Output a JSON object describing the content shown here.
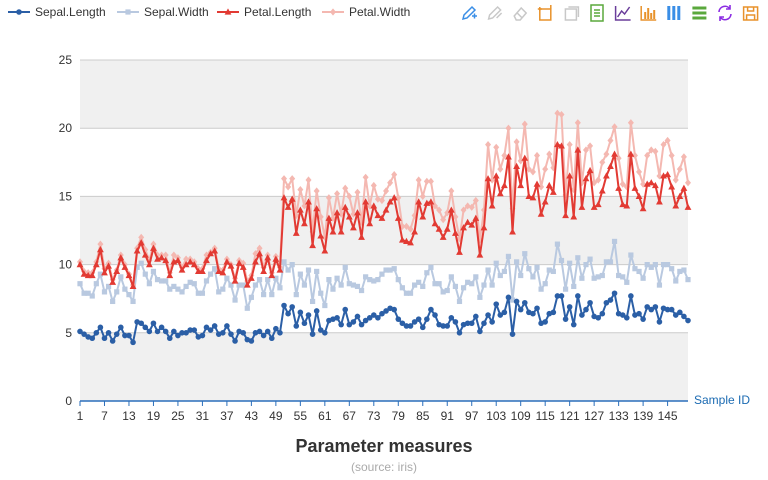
{
  "chart_data": {
    "type": "line",
    "title": "Parameter measures",
    "subtitle": "(source: iris)",
    "xlabel": "Sample ID",
    "ylabel": "",
    "xlim": [
      1,
      150
    ],
    "ylim": [
      0,
      25
    ],
    "x_ticks": [
      1,
      7,
      13,
      19,
      25,
      31,
      37,
      43,
      49,
      55,
      61,
      67,
      73,
      79,
      85,
      91,
      97,
      103,
      109,
      115,
      121,
      127,
      133,
      139,
      145
    ],
    "y_ticks": [
      0,
      5,
      10,
      15,
      20,
      25
    ],
    "grid": "alternating horizontal bands",
    "legend_position": "top-left",
    "series": [
      {
        "name": "Sepal.Length",
        "color": "#2b5fa6",
        "marker": "circle",
        "values": [
          5.1,
          4.9,
          4.7,
          4.6,
          5.0,
          5.4,
          4.6,
          5.0,
          4.4,
          4.9,
          5.4,
          4.8,
          4.8,
          4.3,
          5.8,
          5.7,
          5.4,
          5.1,
          5.7,
          5.1,
          5.4,
          5.1,
          4.6,
          5.1,
          4.8,
          5.0,
          5.0,
          5.2,
          5.2,
          4.7,
          4.8,
          5.4,
          5.2,
          5.5,
          4.9,
          5.0,
          5.5,
          4.9,
          4.4,
          5.1,
          5.0,
          4.5,
          4.4,
          5.0,
          5.1,
          4.8,
          5.1,
          4.6,
          5.3,
          5.0,
          7.0,
          6.4,
          6.9,
          5.5,
          6.5,
          5.7,
          6.3,
          4.9,
          6.6,
          5.2,
          5.0,
          5.9,
          6.0,
          6.1,
          5.6,
          6.7,
          5.6,
          5.8,
          6.2,
          5.6,
          5.9,
          6.1,
          6.3,
          6.1,
          6.4,
          6.6,
          6.8,
          6.7,
          6.0,
          5.7,
          5.5,
          5.5,
          5.8,
          6.0,
          5.4,
          6.0,
          6.7,
          6.3,
          5.6,
          5.5,
          5.5,
          6.1,
          5.8,
          5.0,
          5.6,
          5.7,
          5.7,
          6.2,
          5.1,
          5.7,
          6.3,
          5.8,
          7.1,
          6.3,
          6.5,
          7.6,
          4.9,
          7.3,
          6.7,
          7.2,
          6.5,
          6.4,
          6.8,
          5.7,
          5.8,
          6.4,
          6.5,
          7.7,
          7.7,
          6.0,
          6.9,
          5.6,
          7.7,
          6.3,
          6.7,
          7.2,
          6.2,
          6.1,
          6.4,
          7.2,
          7.4,
          7.9,
          6.4,
          6.3,
          6.1,
          7.7,
          6.3,
          6.4,
          6.0,
          6.9,
          6.7,
          6.9,
          5.8,
          6.8,
          6.7,
          6.7,
          6.3,
          6.5,
          6.2,
          5.9
        ]
      },
      {
        "name": "Sepal.Width",
        "color": "#b9c9e0",
        "marker": "square",
        "values": [
          8.6,
          7.9,
          7.9,
          7.7,
          8.6,
          9.3,
          8.0,
          8.4,
          7.3,
          8.0,
          9.1,
          8.2,
          7.8,
          7.3,
          9.8,
          10.1,
          9.3,
          8.6,
          9.5,
          8.9,
          8.8,
          8.8,
          8.2,
          8.4,
          8.2,
          8.0,
          8.4,
          8.7,
          8.6,
          7.9,
          7.9,
          8.8,
          9.3,
          9.7,
          8.0,
          8.2,
          9.0,
          8.5,
          7.4,
          8.5,
          8.5,
          6.8,
          7.6,
          8.5,
          8.9,
          7.8,
          8.9,
          7.8,
          9.0,
          8.3,
          10.2,
          9.6,
          10.0,
          7.8,
          9.3,
          8.5,
          9.6,
          7.3,
          9.5,
          7.9,
          7.0,
          8.9,
          8.2,
          9.0,
          8.5,
          9.8,
          8.6,
          8.5,
          8.4,
          8.1,
          9.1,
          8.9,
          8.8,
          8.9,
          9.3,
          9.6,
          9.6,
          9.7,
          8.9,
          8.3,
          7.9,
          7.9,
          8.5,
          8.7,
          8.4,
          9.4,
          9.8,
          8.6,
          8.6,
          8.0,
          8.1,
          9.1,
          8.4,
          7.3,
          8.3,
          8.7,
          8.6,
          9.1,
          7.6,
          8.5,
          9.6,
          8.5,
          10.1,
          9.2,
          9.5,
          10.6,
          7.4,
          10.2,
          9.2,
          10.8,
          9.7,
          9.1,
          9.8,
          8.2,
          8.6,
          9.6,
          9.5,
          11.5,
          10.3,
          8.2,
          10.1,
          8.4,
          10.5,
          9.0,
          10.0,
          10.4,
          9.0,
          9.1,
          9.2,
          10.2,
          10.2,
          11.7,
          9.2,
          9.1,
          8.7,
          10.7,
          9.7,
          9.5,
          9.0,
          10.0,
          9.8,
          10.0,
          8.5,
          10.0,
          10.0,
          9.7,
          8.8,
          9.5,
          9.6,
          8.9
        ]
      },
      {
        "name": "Petal.Length",
        "color": "#e23a33",
        "marker": "triangle",
        "values": [
          10.0,
          9.3,
          9.2,
          9.2,
          10.0,
          11.1,
          9.4,
          9.9,
          8.7,
          9.5,
          10.5,
          9.8,
          9.2,
          8.4,
          11.0,
          11.6,
          10.7,
          10.0,
          11.2,
          10.4,
          10.5,
          10.3,
          9.2,
          10.2,
          10.3,
          9.6,
          10.0,
          10.2,
          10.0,
          9.5,
          9.5,
          10.3,
          10.8,
          11.0,
          9.5,
          9.4,
          10.2,
          9.9,
          8.8,
          10.1,
          9.8,
          8.5,
          9.0,
          10.2,
          10.8,
          9.5,
          10.5,
          9.2,
          10.4,
          9.6,
          14.9,
          14.2,
          14.8,
          12.3,
          14.0,
          13.0,
          14.6,
          11.4,
          14.1,
          12.1,
          11.0,
          13.4,
          12.4,
          13.8,
          12.4,
          14.2,
          13.5,
          12.7,
          13.8,
          12.0,
          14.6,
          13.0,
          14.3,
          13.6,
          13.4,
          14.0,
          14.6,
          14.9,
          13.4,
          11.8,
          11.7,
          11.6,
          12.4,
          14.6,
          13.5,
          14.5,
          14.6,
          13.0,
          12.6,
          12.0,
          12.6,
          14.0,
          12.3,
          10.9,
          12.7,
          13.1,
          12.9,
          13.4,
          10.7,
          12.7,
          16.3,
          14.3,
          16.5,
          15.2,
          15.8,
          17.9,
          12.4,
          17.2,
          15.8,
          17.8,
          15.0,
          14.9,
          15.9,
          13.7,
          14.6,
          15.8,
          15.3,
          18.8,
          18.7,
          13.6,
          16.5,
          13.5,
          18.4,
          14.2,
          16.3,
          16.9,
          14.2,
          14.4,
          15.4,
          16.5,
          17.2,
          18.1,
          15.6,
          14.4,
          14.3,
          18.1,
          15.6,
          15.0,
          14.1,
          15.9,
          16.0,
          15.8,
          14.6,
          16.5,
          16.6,
          15.7,
          14.3,
          15.0,
          15.6,
          14.2
        ]
      },
      {
        "name": "Petal.Width",
        "color": "#f4b8b1",
        "marker": "diamond",
        "values": [
          10.2,
          9.5,
          9.4,
          9.4,
          10.2,
          11.5,
          9.7,
          10.1,
          8.9,
          9.6,
          10.7,
          10.0,
          9.3,
          8.5,
          11.2,
          12.0,
          11.1,
          10.3,
          11.5,
          10.7,
          10.7,
          10.7,
          9.4,
          10.7,
          10.5,
          9.8,
          10.4,
          10.4,
          10.2,
          9.7,
          9.7,
          10.7,
          10.9,
          11.2,
          9.7,
          9.6,
          10.4,
          10.0,
          9.0,
          10.3,
          10.1,
          8.8,
          9.2,
          10.8,
          11.2,
          9.8,
          10.7,
          9.4,
          10.6,
          9.8,
          16.3,
          15.7,
          16.3,
          13.6,
          15.5,
          14.3,
          16.2,
          12.4,
          15.4,
          13.5,
          12.0,
          14.9,
          13.4,
          15.2,
          13.7,
          15.6,
          15.0,
          13.7,
          15.3,
          13.1,
          16.4,
          14.3,
          15.8,
          14.8,
          14.7,
          15.4,
          16.0,
          16.6,
          14.9,
          12.8,
          12.8,
          12.6,
          13.6,
          16.2,
          15.0,
          16.1,
          16.1,
          14.3,
          14.0,
          13.3,
          13.8,
          15.4,
          13.5,
          11.9,
          14.0,
          14.3,
          14.2,
          14.7,
          11.8,
          14.0,
          18.8,
          16.2,
          18.6,
          17.0,
          18.0,
          20.0,
          14.1,
          19.0,
          17.6,
          20.3,
          17.0,
          16.8,
          18.0,
          15.7,
          17.0,
          18.1,
          17.1,
          21.1,
          21.0,
          15.1,
          18.8,
          15.5,
          20.4,
          16.0,
          18.4,
          18.7,
          16.0,
          16.2,
          17.5,
          18.1,
          19.1,
          20.1,
          17.8,
          15.9,
          15.7,
          20.4,
          18.0,
          16.8,
          15.9,
          18.0,
          18.4,
          18.3,
          16.5,
          18.8,
          19.1,
          18.0,
          16.2,
          17.0,
          17.9,
          16.0
        ]
      }
    ]
  },
  "toolbar": {
    "icons": [
      {
        "name": "mark-pen-icon",
        "color": "#3a8ee6"
      },
      {
        "name": "clear-mark-icon",
        "color": "#c8c8c8"
      },
      {
        "name": "eraser-icon",
        "color": "#c8c8c8"
      },
      {
        "name": "zoom-box-icon",
        "color": "#e8922b"
      },
      {
        "name": "zoom-reset-icon",
        "color": "#c8c8c8"
      },
      {
        "name": "data-view-icon",
        "color": "#5aa83c"
      },
      {
        "name": "line-chart-icon",
        "color": "#6a3d9a"
      },
      {
        "name": "bar-chart-icon",
        "color": "#e8922b"
      },
      {
        "name": "stack-icon",
        "color": "#3a8ee6"
      },
      {
        "name": "tiled-icon",
        "color": "#5aa83c"
      },
      {
        "name": "restore-icon",
        "color": "#8a2be2"
      },
      {
        "name": "save-image-icon",
        "color": "#e8922b"
      }
    ]
  }
}
